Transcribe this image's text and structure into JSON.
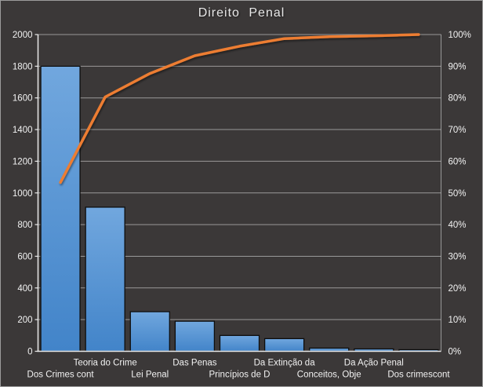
{
  "chart": {
    "title": "Direito Penal",
    "colors": {
      "background": "#3b3838",
      "frame_border": "#9c9c9c",
      "gridline": "#c2c2c2",
      "axis_line": "#e9e9e9",
      "text": "#f2f2f2",
      "bar_fill_top": "#71a7de",
      "bar_fill_bottom": "#4284c9",
      "bar_border": "#0e0e0e",
      "line": "#ed7d31"
    }
  },
  "chart_data": {
    "type": "bar",
    "subtype": "pareto (bars + cumulative percentage line)",
    "title": "Direito Penal",
    "categories": [
      "Dos Crimes cont",
      "Teoria do Crime",
      "Lei Penal",
      "Das Penas",
      "Princípios de D",
      "Da Extinção da",
      "Conceitos, Obje",
      "Da Ação Penal",
      "Dos crimescont"
    ],
    "series": [
      {
        "name": "frequency-bars",
        "type": "bar",
        "axis": "left",
        "values": [
          1800,
          910,
          250,
          190,
          100,
          80,
          20,
          15,
          10
        ]
      },
      {
        "name": "cumulative-percent-line",
        "type": "line",
        "axis": "right",
        "values_percent": [
          53.3,
          80.3,
          87.7,
          93.3,
          96.3,
          98.7,
          99.3,
          99.6,
          100
        ]
      }
    ],
    "left_axis": {
      "min": 0,
      "max": 2000,
      "step": 200,
      "tick_labels": [
        "0",
        "200",
        "400",
        "600",
        "800",
        "1000",
        "1200",
        "1400",
        "1600",
        "1800",
        "2000"
      ]
    },
    "right_axis": {
      "min": 0,
      "max": 100,
      "step": 10,
      "tick_labels": [
        "0%",
        "10%",
        "20%",
        "30%",
        "40%",
        "50%",
        "60%",
        "70%",
        "80%",
        "90%",
        "100%"
      ]
    },
    "grid": "horizontal gridlines on",
    "legend": "none",
    "x_label_layout": "staggered two rows, first label on lower row"
  }
}
